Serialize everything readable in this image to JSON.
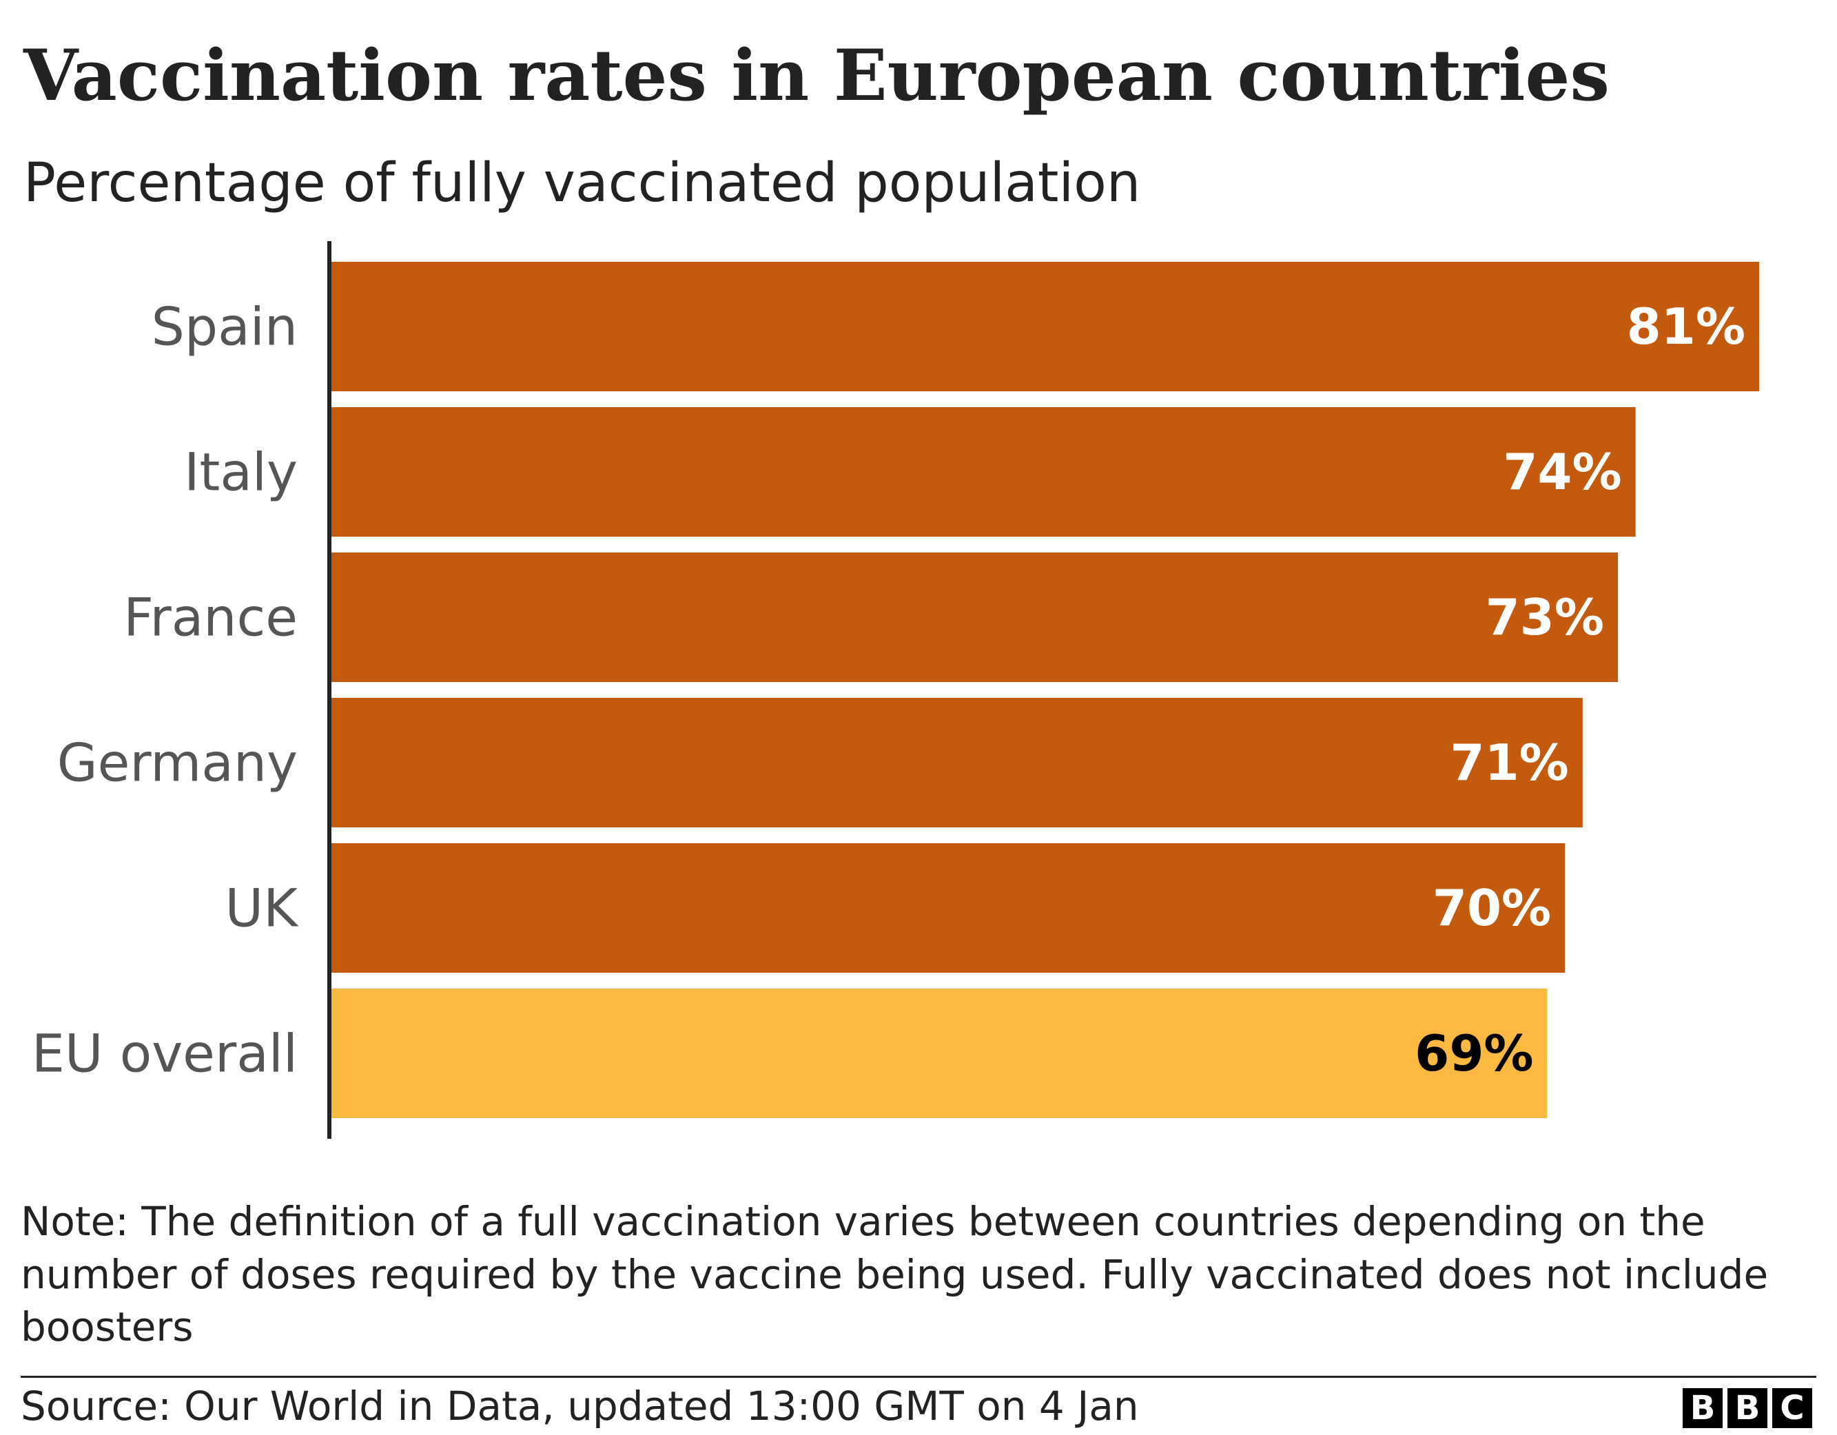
{
  "header": {
    "title": "Vaccination rates in European countries",
    "subtitle": "Percentage of fully vaccinated population"
  },
  "chart_data": {
    "type": "bar",
    "orientation": "horizontal",
    "categories": [
      "Spain",
      "Italy",
      "France",
      "Germany",
      "UK",
      "EU overall"
    ],
    "values": [
      81,
      74,
      73,
      71,
      70,
      69
    ],
    "data_labels": [
      "81%",
      "74%",
      "73%",
      "71%",
      "70%",
      "69%"
    ],
    "highlight": [
      "",
      "",
      "",
      "",
      "",
      "EU overall"
    ],
    "colors": {
      "bar": "#c45a0e",
      "highlight_bar": "#fbb941",
      "label_on_bar": "#ffffff",
      "label_on_highlight": "#000000",
      "category_label": "#555555",
      "axis": "#222222"
    },
    "xlim": [
      0,
      81
    ],
    "grid": false,
    "legend": "none"
  },
  "footer": {
    "note": "Note: The definition of a full vaccination varies between countries depending on the number of doses required by the vaccine being used. Fully vaccinated does not include boosters",
    "source": "Source: Our World in Data, updated 13:00 GMT on 4 Jan",
    "logo": [
      "B",
      "B",
      "C"
    ]
  }
}
